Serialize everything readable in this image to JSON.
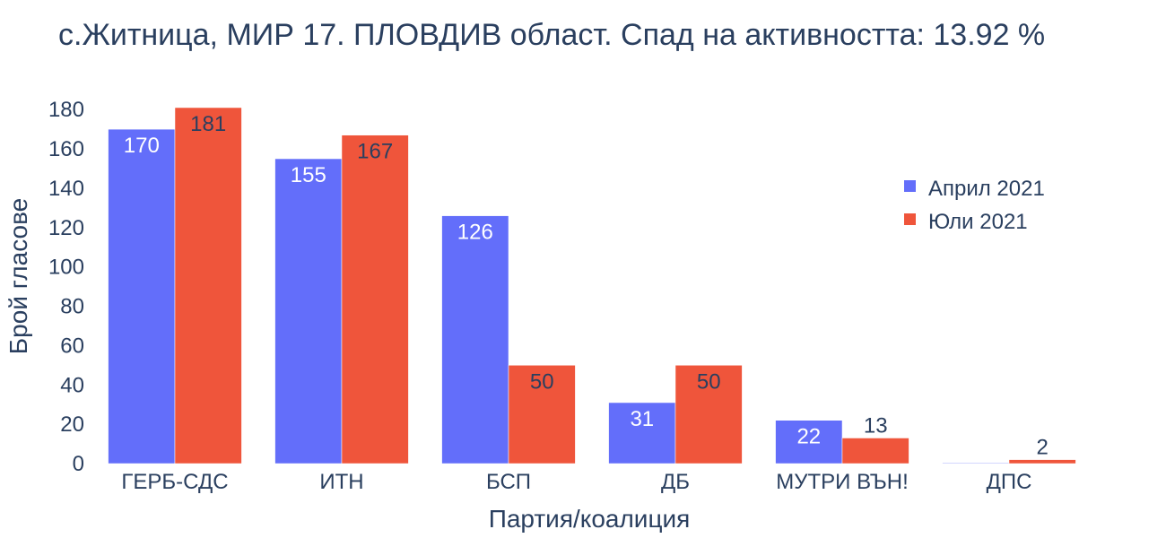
{
  "chart_data": {
    "type": "bar",
    "title": "с.Житница, МИР 17. ПЛОВДИВ област. Спад на активността: 13.92 %",
    "xlabel": "Партия/коалиция",
    "ylabel": "Брой гласове",
    "ylim": [
      0,
      181
    ],
    "yticks": [
      0,
      20,
      40,
      60,
      80,
      100,
      120,
      140,
      160,
      180
    ],
    "categories": [
      "ГЕРБ-СДС",
      "ИТН",
      "БСП",
      "ДБ",
      "МУТРИ ВЪН!",
      "ДПС"
    ],
    "series": [
      {
        "name": "Април 2021",
        "color": "#636efa",
        "values": [
          170,
          155,
          126,
          31,
          22,
          0
        ],
        "labels": [
          "170",
          "155",
          "126",
          "31",
          "22",
          ""
        ]
      },
      {
        "name": "Юли 2021",
        "color": "#ef553b",
        "values": [
          181,
          167,
          50,
          50,
          13,
          2
        ],
        "labels": [
          "181",
          "167",
          "50",
          "50",
          "13",
          "2"
        ]
      }
    ],
    "legend_position": "top-right",
    "grid": false
  }
}
